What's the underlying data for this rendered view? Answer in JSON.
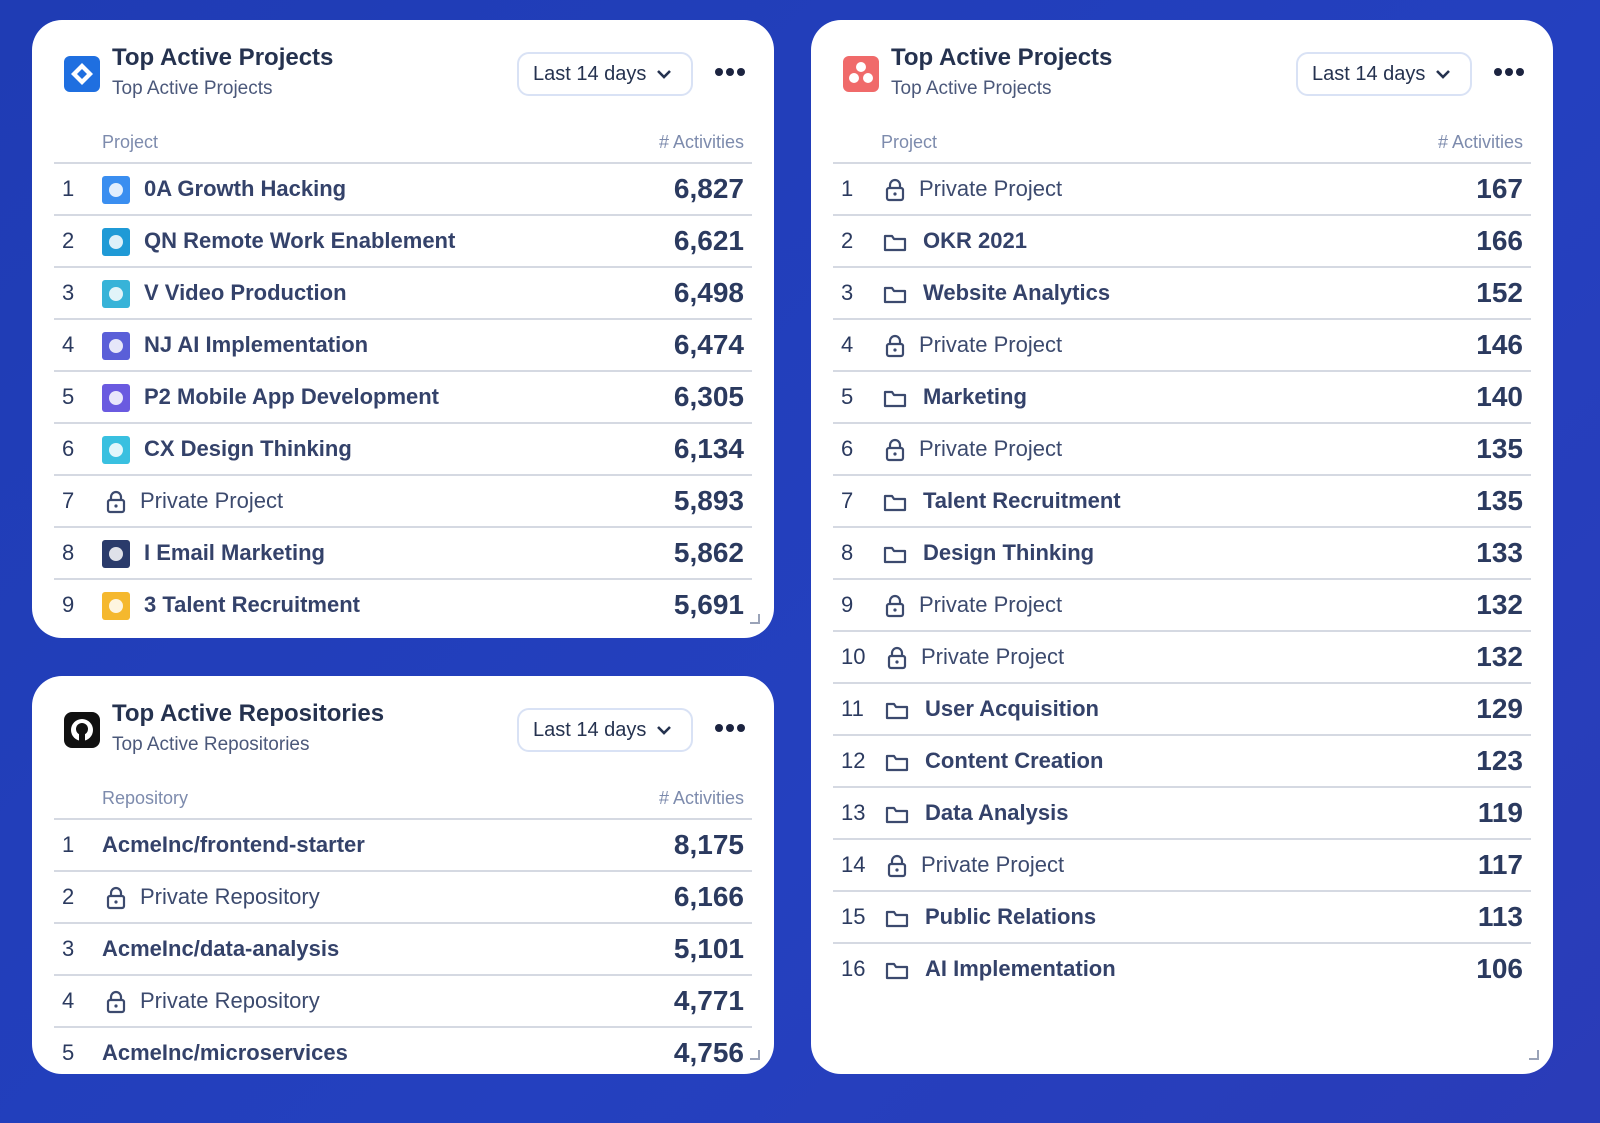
{
  "widgets": [
    {
      "title": "Top Active Projects",
      "subtitle": "Top Active Projects",
      "range": "Last 14 days",
      "columns": [
        "Project",
        "# Activities"
      ],
      "rows": [
        {
          "rank": "1",
          "name": "0A Growth Hacking",
          "value": "6,827",
          "icon": "app"
        },
        {
          "rank": "2",
          "name": "QN Remote Work Enablement",
          "value": "6,621",
          "icon": "app"
        },
        {
          "rank": "3",
          "name": "V Video Production",
          "value": "6,498",
          "icon": "app"
        },
        {
          "rank": "4",
          "name": "NJ AI Implementation",
          "value": "6,474",
          "icon": "app"
        },
        {
          "rank": "5",
          "name": "P2 Mobile App Development",
          "value": "6,305",
          "icon": "app"
        },
        {
          "rank": "6",
          "name": "CX Design Thinking",
          "value": "6,134",
          "icon": "app"
        },
        {
          "rank": "7",
          "name": "Private Project",
          "value": "5,893",
          "icon": "lock"
        },
        {
          "rank": "8",
          "name": "I Email Marketing",
          "value": "5,862",
          "icon": "app"
        },
        {
          "rank": "9",
          "name": "3 Talent Recruitment",
          "value": "5,691",
          "icon": "app"
        }
      ]
    },
    {
      "title": "Top Active Repositories",
      "subtitle": "Top Active Repositories",
      "range": "Last 14 days",
      "columns": [
        "Repository",
        "# Activities"
      ],
      "rows": [
        {
          "rank": "1",
          "name": "AcmeInc/frontend-starter",
          "value": "8,175"
        },
        {
          "rank": "2",
          "name": "Private Repository",
          "value": "6,166",
          "icon": "lock"
        },
        {
          "rank": "3",
          "name": "AcmeInc/data-analysis",
          "value": "5,101"
        },
        {
          "rank": "4",
          "name": "Private Repository",
          "value": "4,771",
          "icon": "lock"
        },
        {
          "rank": "5",
          "name": "AcmeInc/microservices",
          "value": "4,756"
        }
      ]
    },
    {
      "title": "Top Active Projects",
      "subtitle": "Top Active Projects",
      "range": "Last 14 days",
      "columns": [
        "Project",
        "# Activities"
      ],
      "rows": [
        {
          "rank": "1",
          "name": "Private Project",
          "value": "167",
          "icon": "lock"
        },
        {
          "rank": "2",
          "name": "OKR 2021",
          "value": "166",
          "icon": "folder"
        },
        {
          "rank": "3",
          "name": "Website Analytics",
          "value": "152",
          "icon": "folder"
        },
        {
          "rank": "4",
          "name": "Private Project",
          "value": "146",
          "icon": "lock"
        },
        {
          "rank": "5",
          "name": "Marketing",
          "value": "140",
          "icon": "folder"
        },
        {
          "rank": "6",
          "name": "Private Project",
          "value": "135",
          "icon": "lock"
        },
        {
          "rank": "7",
          "name": "Talent Recruitment",
          "value": "135",
          "icon": "folder"
        },
        {
          "rank": "8",
          "name": "Design Thinking",
          "value": "133",
          "icon": "folder"
        },
        {
          "rank": "9",
          "name": "Private Project",
          "value": "132",
          "icon": "lock"
        },
        {
          "rank": "10",
          "name": "Private Project",
          "value": "132",
          "icon": "lock"
        },
        {
          "rank": "11",
          "name": "User Acquisition",
          "value": "129",
          "icon": "folder"
        },
        {
          "rank": "12",
          "name": "Content Creation",
          "value": "123",
          "icon": "folder"
        },
        {
          "rank": "13",
          "name": "Data Analysis",
          "value": "119",
          "icon": "folder"
        },
        {
          "rank": "14",
          "name": "Private Project",
          "value": "117",
          "icon": "lock"
        },
        {
          "rank": "15",
          "name": "Public Relations",
          "value": "113",
          "icon": "folder"
        },
        {
          "rank": "16",
          "name": "AI Implementation",
          "value": "106",
          "icon": "folder"
        }
      ]
    }
  ]
}
